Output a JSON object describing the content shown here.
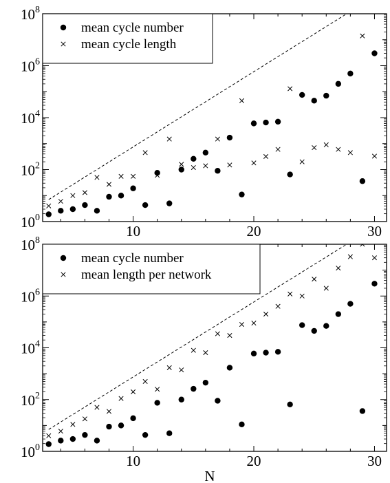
{
  "chart_data": [
    {
      "type": "scatter",
      "title": "",
      "xlabel": "",
      "ylabel": "",
      "xlim": [
        2.5,
        31
      ],
      "ylim": [
        1,
        100000000
      ],
      "y_scale": "log",
      "x_ticks": [
        10,
        20,
        30
      ],
      "y_ticks": [
        {
          "value": 1,
          "base": "10",
          "exp": "0"
        },
        {
          "value": 100,
          "base": "10",
          "exp": "2"
        },
        {
          "value": 10000,
          "base": "10",
          "exp": "4"
        },
        {
          "value": 1000000,
          "base": "10",
          "exp": "6"
        },
        {
          "value": 100000000,
          "base": "10",
          "exp": "8"
        }
      ],
      "grid": false,
      "legend_position": "top-left",
      "series": [
        {
          "name": "mean cycle number",
          "marker": "dot",
          "points": [
            [
              3,
              1.9
            ],
            [
              4,
              2.6
            ],
            [
              5,
              3.0
            ],
            [
              6,
              4.3
            ],
            [
              7,
              2.6
            ],
            [
              8,
              9
            ],
            [
              9,
              10
            ],
            [
              10,
              19
            ],
            [
              11,
              4.3
            ],
            [
              12,
              75
            ],
            [
              13,
              5
            ],
            [
              14,
              100
            ],
            [
              15,
              260
            ],
            [
              16,
              450
            ],
            [
              17,
              90
            ],
            [
              18,
              1700
            ],
            [
              19,
              11
            ],
            [
              20,
              6000
            ],
            [
              21,
              6500
            ],
            [
              22,
              7000
            ],
            [
              23,
              65
            ],
            [
              24,
              75000
            ],
            [
              25,
              45000
            ],
            [
              26,
              70000
            ],
            [
              27,
              200000
            ],
            [
              28,
              500000
            ],
            [
              29,
              36
            ],
            [
              30,
              3000000
            ]
          ]
        },
        {
          "name": "mean cycle length",
          "marker": "cross",
          "points": [
            [
              3,
              4
            ],
            [
              4,
              6
            ],
            [
              5,
              10
            ],
            [
              6,
              13
            ],
            [
              7,
              50
            ],
            [
              8,
              27
            ],
            [
              9,
              55
            ],
            [
              10,
              55
            ],
            [
              11,
              450
            ],
            [
              12,
              60
            ],
            [
              13,
              1500
            ],
            [
              14,
              160
            ],
            [
              15,
              120
            ],
            [
              16,
              140
            ],
            [
              17,
              1500
            ],
            [
              18,
              150
            ],
            [
              19,
              45000
            ],
            [
              20,
              180
            ],
            [
              21,
              320
            ],
            [
              22,
              600
            ],
            [
              23,
              130000
            ],
            [
              24,
              200
            ],
            [
              25,
              700
            ],
            [
              26,
              900
            ],
            [
              27,
              600
            ],
            [
              28,
              450
            ],
            [
              29,
              14000000
            ],
            [
              30,
              330
            ]
          ]
        },
        {
          "name": "",
          "marker": "dashed-line",
          "points": [
            [
              3,
              7
            ],
            [
              27.7,
              100000000
            ]
          ]
        }
      ]
    },
    {
      "type": "scatter",
      "title": "",
      "xlabel": "N",
      "ylabel": "",
      "xlim": [
        2.5,
        31
      ],
      "ylim": [
        1,
        100000000
      ],
      "y_scale": "log",
      "x_ticks": [
        10,
        20,
        30
      ],
      "y_ticks": [
        {
          "value": 1,
          "base": "10",
          "exp": "0"
        },
        {
          "value": 100,
          "base": "10",
          "exp": "2"
        },
        {
          "value": 10000,
          "base": "10",
          "exp": "4"
        },
        {
          "value": 1000000,
          "base": "10",
          "exp": "6"
        },
        {
          "value": 100000000,
          "base": "10",
          "exp": "8"
        }
      ],
      "grid": false,
      "legend_position": "top-left",
      "series": [
        {
          "name": "mean cycle number",
          "marker": "dot",
          "points": [
            [
              3,
              1.9
            ],
            [
              4,
              2.6
            ],
            [
              5,
              3.0
            ],
            [
              6,
              4.3
            ],
            [
              7,
              2.6
            ],
            [
              8,
              9
            ],
            [
              9,
              10
            ],
            [
              10,
              19
            ],
            [
              11,
              4.3
            ],
            [
              12,
              75
            ],
            [
              13,
              5
            ],
            [
              14,
              100
            ],
            [
              15,
              260
            ],
            [
              16,
              450
            ],
            [
              17,
              90
            ],
            [
              18,
              1700
            ],
            [
              19,
              11
            ],
            [
              20,
              6000
            ],
            [
              21,
              6500
            ],
            [
              22,
              7000
            ],
            [
              23,
              65
            ],
            [
              24,
              75000
            ],
            [
              25,
              45000
            ],
            [
              26,
              70000
            ],
            [
              27,
              200000
            ],
            [
              28,
              500000
            ],
            [
              29,
              36
            ],
            [
              30,
              3000000
            ]
          ]
        },
        {
          "name": "mean length per network",
          "marker": "cross",
          "points": [
            [
              3,
              4
            ],
            [
              4,
              6
            ],
            [
              5,
              11
            ],
            [
              6,
              18
            ],
            [
              7,
              50
            ],
            [
              8,
              35
            ],
            [
              9,
              110
            ],
            [
              10,
              200
            ],
            [
              11,
              500
            ],
            [
              12,
              250
            ],
            [
              13,
              1700
            ],
            [
              14,
              1400
            ],
            [
              15,
              8000
            ],
            [
              16,
              6500
            ],
            [
              17,
              35000
            ],
            [
              18,
              30000
            ],
            [
              19,
              80000
            ],
            [
              20,
              90000
            ],
            [
              21,
              200000
            ],
            [
              22,
              400000
            ],
            [
              23,
              1200000
            ],
            [
              24,
              1000000
            ],
            [
              25,
              4500000
            ],
            [
              26,
              2000000
            ],
            [
              27,
              12000000
            ],
            [
              28,
              33000000
            ],
            [
              29,
              100000000
            ],
            [
              30,
              30000000
            ]
          ]
        },
        {
          "name": "",
          "marker": "dashed-line",
          "points": [
            [
              3,
              7
            ],
            [
              27.7,
              100000000
            ]
          ]
        }
      ]
    }
  ]
}
